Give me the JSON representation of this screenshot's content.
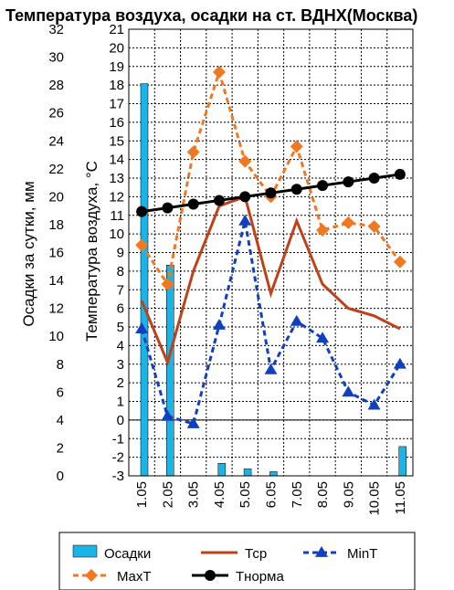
{
  "chart_data": {
    "type": "bar+line",
    "title": "Температура воздуха, осадки на ст. ВДНХ(Москва)",
    "ylabel_left": "Осадки за сутки, мм",
    "ylabel_right": "Температура воздуха, °С",
    "categories": [
      "1.05",
      "2.05",
      "3.05",
      "4.05",
      "5.05",
      "6.05",
      "7.05",
      "8.05",
      "9.05",
      "10.05",
      "11.05"
    ],
    "left_axis": {
      "min": 0,
      "max": 32,
      "step": 2
    },
    "right_axis": {
      "min": -3,
      "max": 21,
      "step": 1
    },
    "grid": true,
    "legend_position": "bottom",
    "series": [
      {
        "name": "Осадки",
        "kind": "bar",
        "axis": "left",
        "color": "#1ab4e8",
        "values": [
          28.1,
          15.1,
          0,
          0.9,
          0.5,
          0.3,
          0,
          0,
          0,
          0,
          2.1
        ]
      },
      {
        "name": "Тср",
        "kind": "line",
        "axis": "right",
        "color": "#c0401a",
        "values": [
          6.4,
          3.1,
          8.0,
          11.5,
          12.0,
          6.8,
          10.7,
          7.3,
          6.0,
          5.6,
          4.9
        ]
      },
      {
        "name": "MinT",
        "kind": "line",
        "axis": "right",
        "color": "#1040c0",
        "dash": true,
        "marker": "triangle",
        "values": [
          4.9,
          0.2,
          -0.2,
          5.1,
          10.7,
          2.7,
          5.3,
          4.4,
          1.5,
          0.8,
          3.0
        ]
      },
      {
        "name": "MaxT",
        "kind": "line",
        "axis": "right",
        "color": "#f07820",
        "dash": true,
        "marker": "diamond",
        "values": [
          9.4,
          7.3,
          14.4,
          18.7,
          13.9,
          12.0,
          14.7,
          10.2,
          10.6,
          10.4,
          8.5
        ]
      },
      {
        "name": "Тнорма",
        "kind": "line",
        "axis": "right",
        "color": "#000000",
        "marker": "circle",
        "values": [
          11.2,
          11.4,
          11.6,
          11.8,
          12.0,
          12.2,
          12.4,
          12.6,
          12.8,
          13.0,
          13.2
        ]
      }
    ],
    "legend": [
      {
        "label": "Осадки",
        "series": 0
      },
      {
        "label": "Тср",
        "series": 1
      },
      {
        "label": "MinT",
        "series": 2
      },
      {
        "label": "MaxT",
        "series": 3
      },
      {
        "label": "Тнорма",
        "series": 4
      }
    ]
  }
}
